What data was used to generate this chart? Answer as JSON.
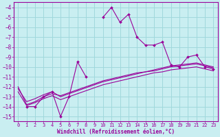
{
  "title": "",
  "xlabel": "Windchill (Refroidissement éolien,°C)",
  "ylabel": "",
  "background_color": "#c9eef1",
  "grid_color": "#a0d8dc",
  "line_color": "#990099",
  "xlim": [
    -0.5,
    23.5
  ],
  "ylim": [
    -15.5,
    -3.5
  ],
  "yticks": [
    -15,
    -14,
    -13,
    -12,
    -11,
    -10,
    -9,
    -8,
    -7,
    -6,
    -5,
    -4
  ],
  "xticks": [
    0,
    1,
    2,
    3,
    4,
    5,
    6,
    7,
    8,
    9,
    10,
    11,
    12,
    13,
    14,
    15,
    16,
    17,
    18,
    19,
    20,
    21,
    22,
    23
  ],
  "series_main": [
    null,
    -14.0,
    -14.0,
    -13.0,
    -12.5,
    -15.0,
    -13.0,
    -9.5,
    -11.0,
    null,
    -5.0,
    -4.0,
    -5.5,
    -4.7,
    -7.0,
    -7.8,
    -7.8,
    -7.5,
    -9.8,
    -10.0,
    -9.0,
    -8.8,
    -10.0,
    -10.2
  ],
  "series_linear": [
    [
      -12.2,
      -13.5,
      -13.2,
      -12.8,
      -12.5,
      -13.0,
      -12.7,
      -12.4,
      -12.1,
      -11.8,
      -11.5,
      -11.3,
      -11.1,
      -10.9,
      -10.7,
      -10.5,
      -10.4,
      -10.2,
      -10.0,
      -9.9,
      -9.8,
      -9.7,
      -9.9,
      -10.1
    ],
    [
      -12.0,
      -13.8,
      -13.5,
      -13.0,
      -12.7,
      -12.9,
      -12.6,
      -12.3,
      -12.0,
      -11.7,
      -11.4,
      -11.2,
      -11.0,
      -10.8,
      -10.6,
      -10.5,
      -10.3,
      -10.1,
      -9.9,
      -9.8,
      -9.7,
      -9.6,
      -9.8,
      -10.0
    ],
    [
      -12.5,
      -13.9,
      -13.6,
      -13.2,
      -12.9,
      -13.3,
      -13.0,
      -12.7,
      -12.4,
      -12.1,
      -11.8,
      -11.6,
      -11.4,
      -11.2,
      -11.0,
      -10.8,
      -10.6,
      -10.5,
      -10.3,
      -10.2,
      -10.1,
      -10.0,
      -10.2,
      -10.4
    ]
  ]
}
